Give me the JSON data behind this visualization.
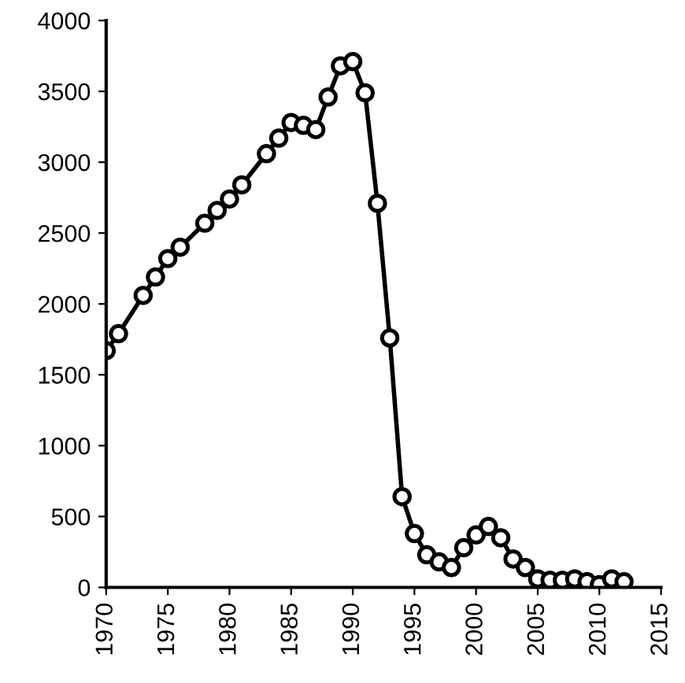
{
  "chart_data": {
    "type": "line",
    "x": [
      1970,
      1971,
      1973,
      1974,
      1975,
      1976,
      1978,
      1979,
      1980,
      1981,
      1983,
      1984,
      1985,
      1986,
      1987,
      1988,
      1989,
      1990,
      1991,
      1992,
      1993,
      1994,
      1995,
      1996,
      1997,
      1998,
      1999,
      2000,
      2001,
      2002,
      2003,
      2004,
      2005,
      2006,
      2007,
      2008,
      2009,
      2010,
      2011,
      2012
    ],
    "series": [
      {
        "color": "#000000",
        "values": [
          1670,
          1790,
          2060,
          2190,
          2320,
          2400,
          2570,
          2660,
          2740,
          2840,
          3060,
          3170,
          3280,
          3260,
          3230,
          3460,
          3680,
          3710,
          3490,
          2710,
          1760,
          640,
          380,
          230,
          180,
          140,
          280,
          370,
          430,
          350,
          200,
          140,
          60,
          50,
          50,
          60,
          40,
          20,
          60,
          40
        ]
      }
    ],
    "xlim": [
      1970,
      2015
    ],
    "xticks": [
      1970,
      1975,
      1980,
      1985,
      1990,
      1995,
      2000,
      2005,
      2010,
      2015
    ],
    "ylim": [
      0,
      4000
    ],
    "yticks": [
      0,
      500,
      1000,
      1500,
      2000,
      2500,
      3000,
      3500,
      4000
    ],
    "marker": "circle",
    "line_style": "solid"
  }
}
